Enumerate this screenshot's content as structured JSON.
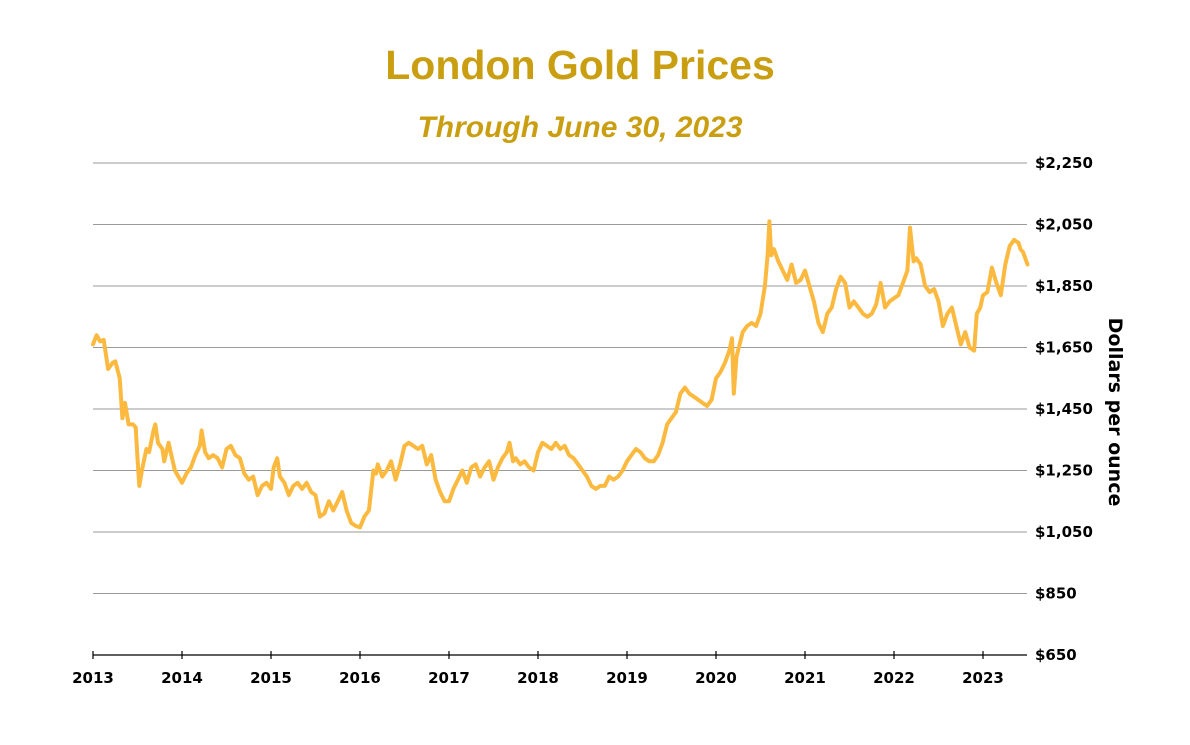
{
  "chart_data": {
    "type": "line",
    "title": "London Gold Prices",
    "subtitle": "Through June 30, 2023",
    "xlabel": "",
    "ylabel": "Dollars per ounce",
    "xlim": [
      2013,
      2023.5
    ],
    "ylim": [
      650,
      2250
    ],
    "y_axis_position": "right",
    "grid": "horizontal",
    "x_ticks": [
      "2013",
      "2014",
      "2015",
      "2016",
      "2017",
      "2018",
      "2019",
      "2020",
      "2021",
      "2022",
      "2023"
    ],
    "y_ticks": [
      "$650",
      "$850",
      "$1,050",
      "$1,250",
      "$1,450",
      "$1,650",
      "$1,850",
      "$2,050",
      "$2,250"
    ],
    "line_color": "#FBBA3F",
    "title_color": "#C99E10",
    "series": [
      {
        "points": [
          [
            2013.0,
            1660
          ],
          [
            2013.04,
            1690
          ],
          [
            2013.08,
            1670
          ],
          [
            2013.12,
            1675
          ],
          [
            2013.17,
            1580
          ],
          [
            2013.22,
            1600
          ],
          [
            2013.25,
            1605
          ],
          [
            2013.3,
            1550
          ],
          [
            2013.33,
            1420
          ],
          [
            2013.36,
            1470
          ],
          [
            2013.4,
            1400
          ],
          [
            2013.45,
            1400
          ],
          [
            2013.48,
            1390
          ],
          [
            2013.5,
            1290
          ],
          [
            2013.52,
            1200
          ],
          [
            2013.55,
            1250
          ],
          [
            2013.6,
            1320
          ],
          [
            2013.63,
            1310
          ],
          [
            2013.68,
            1380
          ],
          [
            2013.7,
            1400
          ],
          [
            2013.73,
            1340
          ],
          [
            2013.78,
            1320
          ],
          [
            2013.8,
            1280
          ],
          [
            2013.85,
            1340
          ],
          [
            2013.88,
            1300
          ],
          [
            2013.92,
            1250
          ],
          [
            2013.96,
            1230
          ],
          [
            2014.0,
            1210
          ],
          [
            2014.05,
            1240
          ],
          [
            2014.1,
            1260
          ],
          [
            2014.15,
            1300
          ],
          [
            2014.2,
            1330
          ],
          [
            2014.22,
            1380
          ],
          [
            2014.26,
            1310
          ],
          [
            2014.3,
            1290
          ],
          [
            2014.35,
            1300
          ],
          [
            2014.4,
            1290
          ],
          [
            2014.45,
            1260
          ],
          [
            2014.5,
            1320
          ],
          [
            2014.55,
            1330
          ],
          [
            2014.6,
            1300
          ],
          [
            2014.65,
            1290
          ],
          [
            2014.7,
            1240
          ],
          [
            2014.75,
            1220
          ],
          [
            2014.8,
            1230
          ],
          [
            2014.85,
            1170
          ],
          [
            2014.9,
            1200
          ],
          [
            2014.95,
            1210
          ],
          [
            2015.0,
            1190
          ],
          [
            2015.03,
            1260
          ],
          [
            2015.07,
            1290
          ],
          [
            2015.1,
            1230
          ],
          [
            2015.15,
            1210
          ],
          [
            2015.2,
            1170
          ],
          [
            2015.25,
            1200
          ],
          [
            2015.3,
            1210
          ],
          [
            2015.35,
            1190
          ],
          [
            2015.4,
            1210
          ],
          [
            2015.45,
            1180
          ],
          [
            2015.5,
            1170
          ],
          [
            2015.55,
            1100
          ],
          [
            2015.6,
            1110
          ],
          [
            2015.65,
            1150
          ],
          [
            2015.7,
            1120
          ],
          [
            2015.75,
            1150
          ],
          [
            2015.8,
            1180
          ],
          [
            2015.85,
            1120
          ],
          [
            2015.9,
            1080
          ],
          [
            2015.95,
            1070
          ],
          [
            2016.0,
            1065
          ],
          [
            2016.05,
            1100
          ],
          [
            2016.1,
            1120
          ],
          [
            2016.15,
            1250
          ],
          [
            2016.18,
            1240
          ],
          [
            2016.2,
            1270
          ],
          [
            2016.25,
            1230
          ],
          [
            2016.3,
            1250
          ],
          [
            2016.35,
            1280
          ],
          [
            2016.4,
            1220
          ],
          [
            2016.45,
            1270
          ],
          [
            2016.5,
            1330
          ],
          [
            2016.55,
            1340
          ],
          [
            2016.6,
            1330
          ],
          [
            2016.65,
            1320
          ],
          [
            2016.7,
            1330
          ],
          [
            2016.75,
            1270
          ],
          [
            2016.8,
            1300
          ],
          [
            2016.85,
            1220
          ],
          [
            2016.9,
            1180
          ],
          [
            2016.95,
            1150
          ],
          [
            2017.0,
            1150
          ],
          [
            2017.05,
            1190
          ],
          [
            2017.1,
            1220
          ],
          [
            2017.15,
            1250
          ],
          [
            2017.2,
            1210
          ],
          [
            2017.25,
            1260
          ],
          [
            2017.3,
            1270
          ],
          [
            2017.35,
            1230
          ],
          [
            2017.4,
            1260
          ],
          [
            2017.45,
            1280
          ],
          [
            2017.5,
            1220
          ],
          [
            2017.55,
            1260
          ],
          [
            2017.6,
            1290
          ],
          [
            2017.65,
            1310
          ],
          [
            2017.68,
            1340
          ],
          [
            2017.72,
            1280
          ],
          [
            2017.75,
            1290
          ],
          [
            2017.8,
            1270
          ],
          [
            2017.85,
            1280
          ],
          [
            2017.9,
            1260
          ],
          [
            2017.95,
            1250
          ],
          [
            2018.0,
            1310
          ],
          [
            2018.05,
            1340
          ],
          [
            2018.1,
            1330
          ],
          [
            2018.15,
            1320
          ],
          [
            2018.2,
            1340
          ],
          [
            2018.25,
            1320
          ],
          [
            2018.3,
            1330
          ],
          [
            2018.35,
            1300
          ],
          [
            2018.4,
            1290
          ],
          [
            2018.45,
            1270
          ],
          [
            2018.5,
            1250
          ],
          [
            2018.55,
            1230
          ],
          [
            2018.6,
            1200
          ],
          [
            2018.65,
            1190
          ],
          [
            2018.7,
            1200
          ],
          [
            2018.75,
            1200
          ],
          [
            2018.8,
            1230
          ],
          [
            2018.85,
            1220
          ],
          [
            2018.9,
            1230
          ],
          [
            2018.95,
            1250
          ],
          [
            2019.0,
            1280
          ],
          [
            2019.05,
            1300
          ],
          [
            2019.1,
            1320
          ],
          [
            2019.15,
            1310
          ],
          [
            2019.2,
            1290
          ],
          [
            2019.25,
            1280
          ],
          [
            2019.3,
            1280
          ],
          [
            2019.35,
            1300
          ],
          [
            2019.4,
            1340
          ],
          [
            2019.45,
            1400
          ],
          [
            2019.5,
            1420
          ],
          [
            2019.55,
            1440
          ],
          [
            2019.6,
            1500
          ],
          [
            2019.65,
            1520
          ],
          [
            2019.7,
            1500
          ],
          [
            2019.75,
            1490
          ],
          [
            2019.8,
            1480
          ],
          [
            2019.85,
            1470
          ],
          [
            2019.9,
            1460
          ],
          [
            2019.95,
            1480
          ],
          [
            2020.0,
            1550
          ],
          [
            2020.05,
            1570
          ],
          [
            2020.1,
            1600
          ],
          [
            2020.15,
            1640
          ],
          [
            2020.18,
            1680
          ],
          [
            2020.2,
            1500
          ],
          [
            2020.23,
            1620
          ],
          [
            2020.3,
            1700
          ],
          [
            2020.35,
            1720
          ],
          [
            2020.4,
            1730
          ],
          [
            2020.45,
            1720
          ],
          [
            2020.5,
            1760
          ],
          [
            2020.55,
            1850
          ],
          [
            2020.58,
            1950
          ],
          [
            2020.6,
            2060
          ],
          [
            2020.62,
            1950
          ],
          [
            2020.65,
            1970
          ],
          [
            2020.7,
            1930
          ],
          [
            2020.75,
            1900
          ],
          [
            2020.8,
            1870
          ],
          [
            2020.85,
            1920
          ],
          [
            2020.9,
            1860
          ],
          [
            2020.95,
            1870
          ],
          [
            2021.0,
            1900
          ],
          [
            2021.05,
            1850
          ],
          [
            2021.1,
            1800
          ],
          [
            2021.15,
            1730
          ],
          [
            2021.2,
            1700
          ],
          [
            2021.25,
            1760
          ],
          [
            2021.3,
            1780
          ],
          [
            2021.35,
            1840
          ],
          [
            2021.4,
            1880
          ],
          [
            2021.45,
            1860
          ],
          [
            2021.5,
            1780
          ],
          [
            2021.55,
            1800
          ],
          [
            2021.6,
            1780
          ],
          [
            2021.65,
            1760
          ],
          [
            2021.7,
            1750
          ],
          [
            2021.75,
            1760
          ],
          [
            2021.8,
            1790
          ],
          [
            2021.85,
            1860
          ],
          [
            2021.9,
            1780
          ],
          [
            2021.95,
            1800
          ],
          [
            2022.0,
            1810
          ],
          [
            2022.05,
            1820
          ],
          [
            2022.1,
            1860
          ],
          [
            2022.15,
            1900
          ],
          [
            2022.18,
            2040
          ],
          [
            2022.22,
            1930
          ],
          [
            2022.25,
            1940
          ],
          [
            2022.3,
            1920
          ],
          [
            2022.35,
            1850
          ],
          [
            2022.4,
            1830
          ],
          [
            2022.45,
            1840
          ],
          [
            2022.5,
            1800
          ],
          [
            2022.55,
            1720
          ],
          [
            2022.6,
            1760
          ],
          [
            2022.65,
            1780
          ],
          [
            2022.7,
            1720
          ],
          [
            2022.75,
            1660
          ],
          [
            2022.8,
            1700
          ],
          [
            2022.85,
            1650
          ],
          [
            2022.9,
            1640
          ],
          [
            2022.93,
            1760
          ],
          [
            2022.97,
            1780
          ],
          [
            2023.0,
            1820
          ],
          [
            2023.05,
            1830
          ],
          [
            2023.1,
            1910
          ],
          [
            2023.15,
            1860
          ],
          [
            2023.2,
            1820
          ],
          [
            2023.25,
            1920
          ],
          [
            2023.3,
            1980
          ],
          [
            2023.35,
            2000
          ],
          [
            2023.4,
            1990
          ],
          [
            2023.42,
            1970
          ],
          [
            2023.45,
            1960
          ],
          [
            2023.5,
            1920
          ]
        ]
      }
    ]
  }
}
